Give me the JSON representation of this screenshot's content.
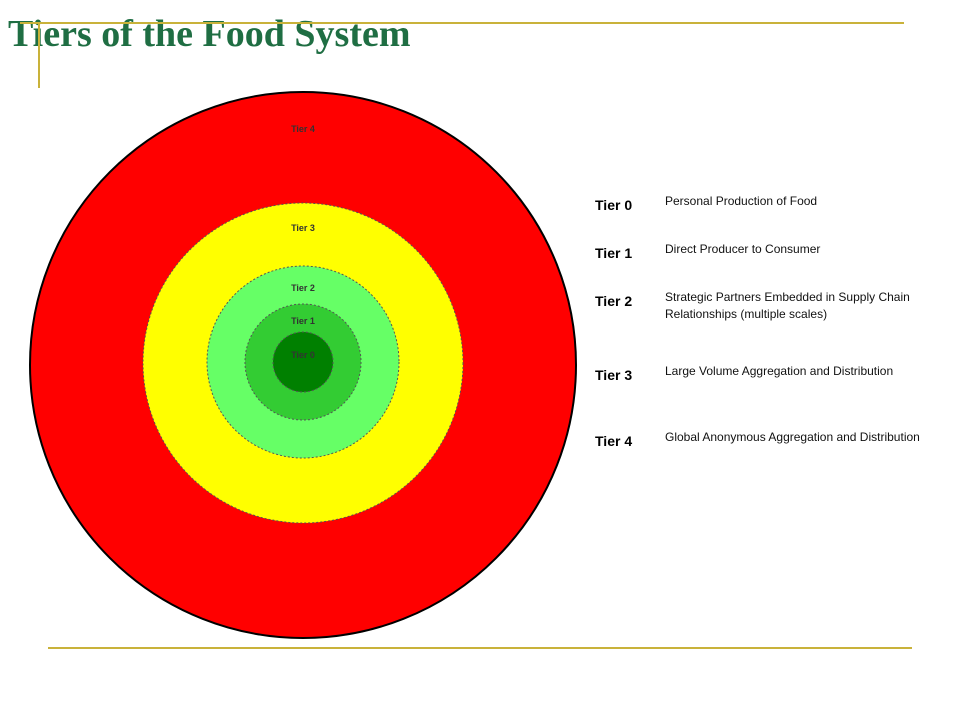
{
  "title": "Tiers of the Food System",
  "colors": {
    "title": "#1f6e43",
    "rule": "#c9b23a",
    "tier4_fill": "#ff0000",
    "tier3_fill": "#ffff00",
    "tier2_fill": "#66ff66",
    "tier1_fill": "#33cc33",
    "tier0_fill": "#008000"
  },
  "diagram": {
    "rings": [
      {
        "label": "Tier 4",
        "fill": "#ff0000"
      },
      {
        "label": "Tier 3",
        "fill": "#ffff00"
      },
      {
        "label": "Tier 2",
        "fill": "#66ff66"
      },
      {
        "label": "Tier 1",
        "fill": "#33cc33"
      },
      {
        "label": "Tier 0",
        "fill": "#008000"
      }
    ]
  },
  "legend": [
    {
      "tier": "Tier 0",
      "description": "Personal Production of Food"
    },
    {
      "tier": "Tier 1",
      "description": "Direct Producer to Consumer"
    },
    {
      "tier": "Tier 2",
      "description": "Strategic Partners Embedded in Supply Chain Relationships  (multiple scales)"
    },
    {
      "tier": "Tier 3",
      "description": "Large Volume Aggregation and Distribution"
    },
    {
      "tier": "Tier 4",
      "description": "Global Anonymous Aggregation and Distribution"
    }
  ]
}
